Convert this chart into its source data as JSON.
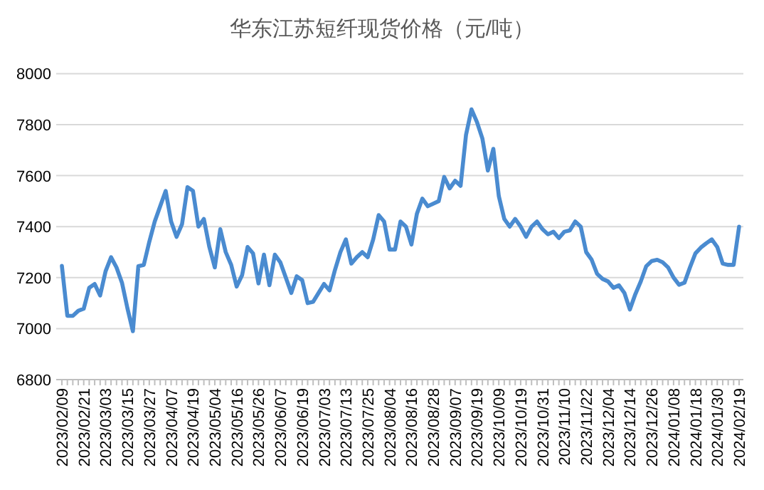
{
  "chart_data": {
    "type": "line",
    "title": "华东江苏短纤现货价格（元/吨）",
    "categories": [
      "2023/02/09",
      null,
      null,
      null,
      "2023/02/21",
      null,
      null,
      null,
      "2023/03/03",
      null,
      null,
      null,
      "2023/03/15",
      null,
      null,
      null,
      "2023/03/27",
      null,
      null,
      null,
      "2023/04/07",
      null,
      null,
      null,
      "2023/04/19",
      null,
      null,
      null,
      "2023/05/04",
      null,
      null,
      null,
      "2023/05/16",
      null,
      null,
      null,
      "2023/05/26",
      null,
      null,
      null,
      "2023/06/07",
      null,
      null,
      null,
      "2023/06/19",
      null,
      null,
      null,
      "2023/07/03",
      null,
      null,
      null,
      "2023/07/13",
      null,
      null,
      null,
      "2023/07/25",
      null,
      null,
      null,
      "2023/08/04",
      null,
      null,
      null,
      "2023/08/16",
      null,
      null,
      null,
      "2023/08/28",
      null,
      null,
      null,
      "2023/09/07",
      null,
      null,
      null,
      "2023/09/19",
      null,
      null,
      null,
      "2023/10/09",
      null,
      null,
      null,
      "2023/10/19",
      null,
      null,
      null,
      "2023/10/31",
      null,
      null,
      null,
      "2023/11/10",
      null,
      null,
      null,
      "2023/11/22",
      null,
      null,
      null,
      "2023/12/04",
      null,
      null,
      null,
      "2023/12/14",
      null,
      null,
      null,
      "2023/12/26",
      null,
      null,
      null,
      "2024/01/08",
      null,
      null,
      null,
      "2024/01/18",
      null,
      null,
      null,
      "2024/01/30",
      null,
      null,
      null,
      "2024/02/19"
    ],
    "series": [
      {
        "color": "#4a8bd0",
        "values": [
          7246,
          7050,
          7050,
          7070,
          7078,
          7160,
          7175,
          7130,
          7225,
          7280,
          7240,
          7180,
          7080,
          6990,
          7245,
          7250,
          7340,
          7420,
          7480,
          7540,
          7420,
          7360,
          7410,
          7555,
          7540,
          7400,
          7430,
          7320,
          7240,
          7390,
          7300,
          7250,
          7165,
          7210,
          7320,
          7295,
          7177,
          7290,
          7170,
          7290,
          7260,
          7200,
          7140,
          7205,
          7190,
          7100,
          7105,
          7140,
          7175,
          7150,
          7230,
          7300,
          7350,
          7255,
          7280,
          7300,
          7280,
          7350,
          7445,
          7420,
          7310,
          7310,
          7420,
          7400,
          7330,
          7450,
          7510,
          7480,
          7490,
          7500,
          7595,
          7550,
          7580,
          7560,
          7760,
          7860,
          7810,
          7745,
          7620,
          7705,
          7520,
          7430,
          7400,
          7430,
          7400,
          7360,
          7400,
          7420,
          7390,
          7370,
          7380,
          7355,
          7380,
          7385,
          7420,
          7400,
          7300,
          7270,
          7215,
          7195,
          7185,
          7160,
          7170,
          7140,
          7075,
          7135,
          7185,
          7245,
          7265,
          7270,
          7260,
          7240,
          7200,
          7172,
          7180,
          7240,
          7295,
          7318,
          7335,
          7350,
          7320,
          7255,
          7250,
          7250,
          7400
        ]
      }
    ],
    "ylim": [
      6800,
      8000
    ],
    "yticks": [
      6800,
      7000,
      7200,
      7400,
      7600,
      7800,
      8000
    ],
    "grid": "y"
  }
}
